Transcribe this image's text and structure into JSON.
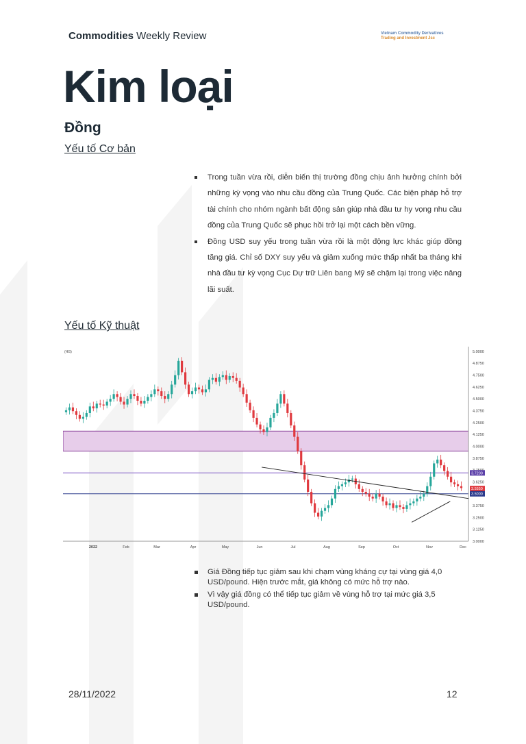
{
  "header": {
    "brand_bold": "Commodities",
    "brand_rest": " Weekly Review",
    "company_line1": "Vietnam Commodity Derivatives",
    "company_line2": "Trading and Investment Jsc"
  },
  "title": "Kim loại",
  "subtitle": "Đồng",
  "sections": {
    "fundamental": "Yếu tố Cơ bản",
    "technical": "Yếu tố Kỹ thuật"
  },
  "fundamental_bullets": [
    "Trong tuần vừa rồi, diễn biến thị trường đồng chịu ảnh hưởng chính bởi những kỳ vọng vào nhu cầu đồng của Trung Quốc. Các biện pháp hỗ trợ tài chính cho nhóm ngành bất động sản giúp nhà đầu tư hy vọng nhu cầu đồng của Trung Quốc sẽ phục hồi trở lại một cách bền vững.",
    "Đồng USD suy yếu trong tuần vừa rồi là một động lực khác giúp đồng tăng giá. Chỉ số DXY suy yếu và giảm xuống mức thấp nhất ba tháng khi nhà đầu tư kỳ vọng Cục Dự trữ Liên bang Mỹ sẽ chậm lại trong việc nâng lãi suất."
  ],
  "technical_bullets": [
    "Giá Đồng tiếp tục giảm sau khi chạm vùng kháng cự tại vùng giá 4,0 USD/pound. Hiện trước mắt, giá không có mức hỗ trợ nào.",
    "Vì vậy giá đồng có thể tiếp tục giảm về vùng hỗ trợ tại mức giá 3,5 USD/pound."
  ],
  "chart_data": {
    "type": "candlestick",
    "unit_label": "(HG)",
    "x_ticks": [
      "2022",
      "Feb",
      "Mar",
      "Apr",
      "May",
      "Jun",
      "Jul",
      "Aug",
      "Sep",
      "Oct",
      "Nov",
      "Dec"
    ],
    "y_ticks": [
      "5.0000",
      "4.8750",
      "4.7500",
      "4.6250",
      "4.5000",
      "4.3750",
      "4.2500",
      "4.1250",
      "4.0000",
      "3.8750",
      "3.7500",
      "3.6250",
      "3.5000",
      "3.3750",
      "3.2500",
      "3.1250",
      "3.0000"
    ],
    "ylim": [
      3.0,
      5.05
    ],
    "price_labels": [
      {
        "text": "3.7200",
        "value": 3.72,
        "color": "#5b3fa8"
      },
      {
        "text": "3.5550",
        "value": 3.555,
        "color": "#e0393e"
      },
      {
        "text": "3.5000",
        "value": 3.5,
        "color": "#2a3a8c"
      }
    ],
    "resistance_zone": {
      "from": 3.95,
      "to": 4.16
    },
    "horizontal_lines": [
      3.72,
      3.5
    ],
    "closes": [
      4.38,
      4.41,
      4.37,
      4.33,
      4.29,
      4.31,
      4.35,
      4.42,
      4.4,
      4.45,
      4.44,
      4.43,
      4.47,
      4.5,
      4.55,
      4.52,
      4.47,
      4.44,
      4.5,
      4.55,
      4.53,
      4.48,
      4.45,
      4.48,
      4.52,
      4.55,
      4.6,
      4.58,
      4.53,
      4.5,
      4.55,
      4.65,
      4.75,
      4.9,
      4.78,
      4.65,
      4.55,
      4.58,
      4.62,
      4.6,
      4.57,
      4.6,
      4.7,
      4.72,
      4.68,
      4.73,
      4.75,
      4.7,
      4.74,
      4.72,
      4.69,
      4.62,
      4.55,
      4.46,
      4.38,
      4.3,
      4.23,
      4.18,
      4.15,
      4.2,
      4.3,
      4.35,
      4.45,
      4.55,
      4.45,
      4.35,
      4.22,
      4.1,
      3.95,
      3.8,
      3.65,
      3.52,
      3.4,
      3.3,
      3.26,
      3.32,
      3.35,
      3.38,
      3.45,
      3.55,
      3.58,
      3.6,
      3.62,
      3.65,
      3.66,
      3.6,
      3.55,
      3.52,
      3.5,
      3.47,
      3.45,
      3.5,
      3.47,
      3.42,
      3.38,
      3.4,
      3.35,
      3.38,
      3.36,
      3.34,
      3.38,
      3.4,
      3.42,
      3.45,
      3.47,
      3.5,
      3.58,
      3.68,
      3.82,
      3.86,
      3.8,
      3.74,
      3.68,
      3.62,
      3.6,
      3.58,
      3.56
    ],
    "trendlines": [
      {
        "x0": 0.86,
        "y0": 3.2,
        "x1": 0.955,
        "y1": 3.42
      },
      {
        "x0": 0.49,
        "y0": 3.78,
        "x1": 1.0,
        "y1": 3.45
      }
    ]
  },
  "footer": {
    "date": "28/11/2022",
    "page": "12"
  }
}
